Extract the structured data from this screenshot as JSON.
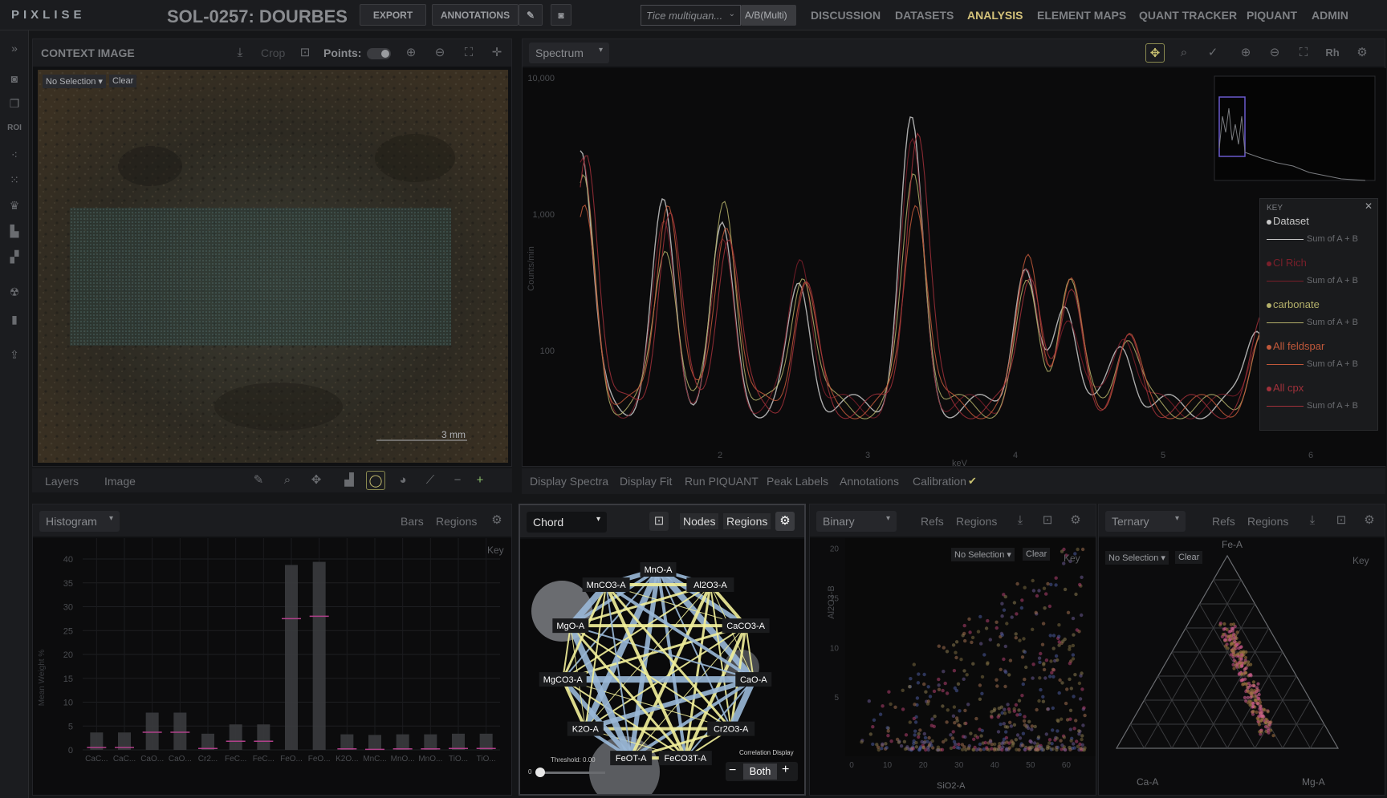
{
  "app": {
    "logo": "PIXLISE",
    "dataset_title": "SOL-0257: DOURBES",
    "export_label": "EXPORT",
    "annotations_label": "ANNOTATIONS",
    "quant_selector": "Tice multiquan...",
    "ab_badge": "A/B(Multi)",
    "nav": [
      "DISCUSSION",
      "DATASETS",
      "ANALYSIS",
      "ELEMENT MAPS",
      "QUANT TRACKER",
      "PIQUANT",
      "ADMIN"
    ],
    "active_nav": "ANALYSIS",
    "accent_color": "#d4c27a"
  },
  "rail": {
    "roi_label": "ROI",
    "icons": [
      "expand-icon",
      "camera-icon",
      "layers-icon",
      "roi-icon",
      "scatter-icon",
      "grid-icon",
      "crown-icon",
      "chart-icon",
      "map-icon",
      "atom-icon",
      "gradient-icon",
      "upload-icon"
    ]
  },
  "context": {
    "title": "CONTEXT IMAGE",
    "crop_label": "Crop",
    "points_label": "Points:",
    "no_selection": "No Selection",
    "clear": "Clear",
    "scale_label": "3 mm",
    "tabs": [
      "Layers",
      "Image"
    ]
  },
  "spectrum": {
    "view_label": "Spectrum",
    "y_axis_label": "Counts/min",
    "x_axis_label": "keV",
    "y_ticks": [
      "10,000",
      "1,000",
      "100"
    ],
    "x_ticks": [
      "2",
      "3",
      "4",
      "5",
      "6"
    ],
    "key_title": "KEY",
    "legend": [
      {
        "name": "Dataset",
        "sub": "Sum of A + B",
        "color": "#c8c8c8"
      },
      {
        "name": "Cl Rich",
        "sub": "Sum of A + B",
        "color": "#7a1f2a"
      },
      {
        "name": "carbonate",
        "sub": "Sum of A + B",
        "color": "#b4b06a"
      },
      {
        "name": "All feldspar",
        "sub": "Sum of A + B",
        "color": "#c0583a"
      },
      {
        "name": "All cpx",
        "sub": "Sum of A + B",
        "color": "#a0303a"
      }
    ],
    "tabs": [
      "Display Spectra",
      "Display Fit",
      "Run PIQUANT",
      "Peak Labels",
      "Annotations",
      "Calibration"
    ]
  },
  "histogram": {
    "view_label": "Histogram",
    "bars_label": "Bars",
    "regions_label": "Regions",
    "key_label": "Key",
    "y_axis_label": "Mean Weight %",
    "y_ticks": [
      "0",
      "5",
      "10",
      "15",
      "20",
      "25",
      "30",
      "35",
      "40"
    ],
    "categories": [
      "CaC...",
      "CaC...",
      "CaO...",
      "CaO...",
      "Cr2...",
      "FeC...",
      "FeC...",
      "FeO...",
      "FeO...",
      "K2O...",
      "MnC...",
      "MnO...",
      "MnO...",
      "TiO...",
      "TiO..."
    ],
    "values": [
      0.5,
      0.5,
      3.7,
      3.7,
      0.3,
      1.8,
      1.8,
      27.5,
      28,
      0.2,
      0.1,
      0.2,
      0.2,
      0.3,
      0.3
    ]
  },
  "chord": {
    "view_label": "Chord",
    "nodes_label": "Nodes",
    "regions_label": "Regions",
    "threshold_label": "Threshold: 0.00",
    "slider_value": "0",
    "correlation_label": "Correlation Display",
    "both_label": "Both",
    "nodes": [
      "MnO-A",
      "Al2O3-A",
      "CaCO3-A",
      "CaO-A",
      "Cr2O3-A",
      "FeCO3T-A",
      "FeOT-A",
      "K2O-A",
      "MgCO3-A",
      "MgO-A",
      "MnCO3-A"
    ]
  },
  "binary": {
    "view_label": "Binary",
    "refs_label": "Refs",
    "regions_label": "Regions",
    "no_selection": "No Selection",
    "clear": "Clear",
    "key_label": "Key",
    "x_label": "SiO2-A",
    "y_label": "Al2O3-B",
    "x_ticks": [
      "0",
      "10",
      "20",
      "30",
      "40",
      "50",
      "60"
    ],
    "y_ticks": [
      "5",
      "10",
      "15",
      "20"
    ]
  },
  "ternary": {
    "view_label": "Ternary",
    "refs_label": "Refs",
    "regions_label": "Regions",
    "no_selection": "No Selection",
    "clear": "Clear",
    "key_label": "Key",
    "top_label": "Fe-A",
    "left_label": "Ca-A",
    "right_label": "Mg-A"
  }
}
